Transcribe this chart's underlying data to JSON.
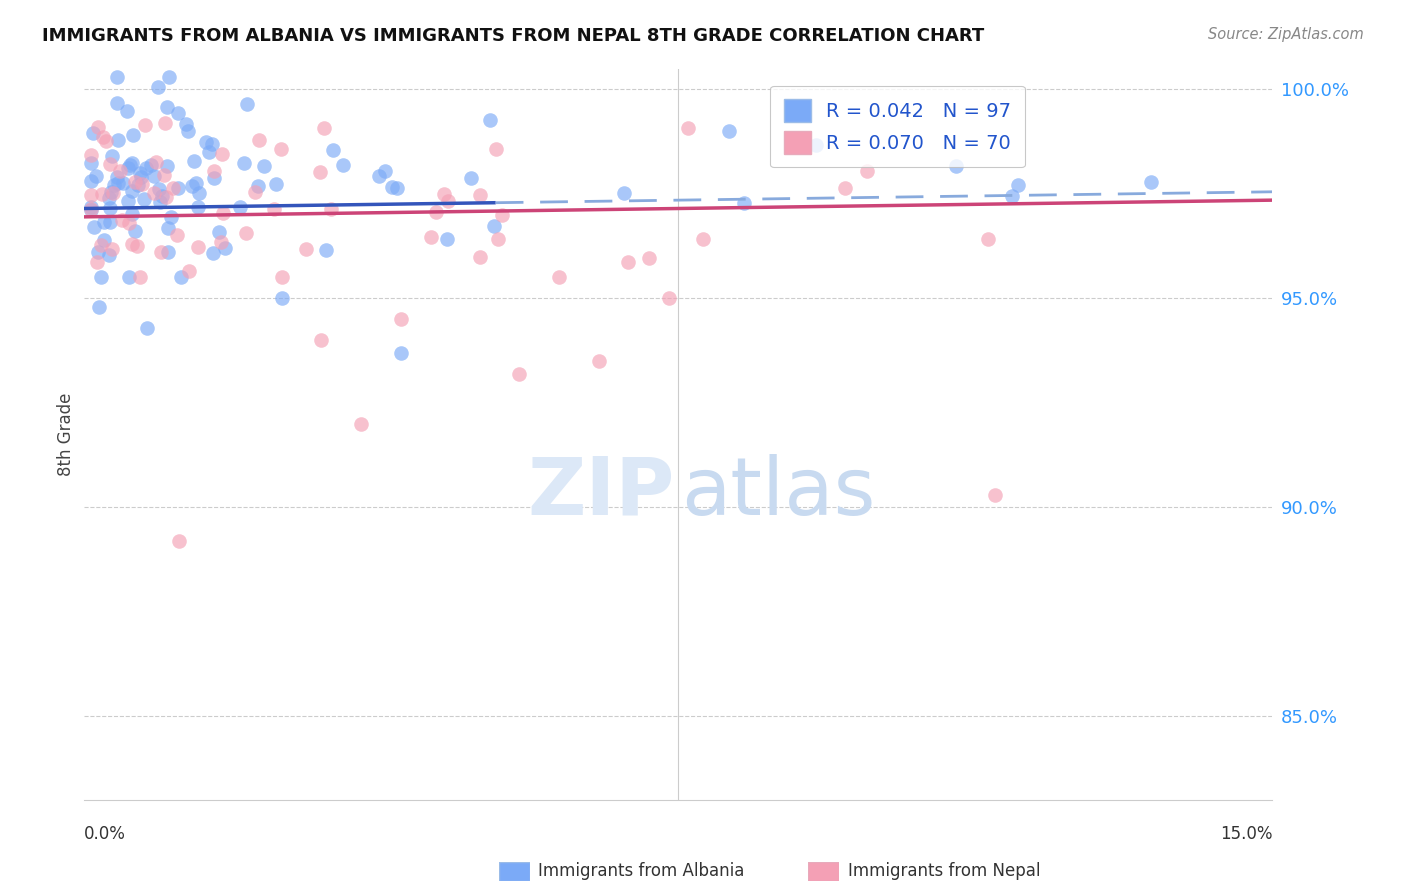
{
  "title": "IMMIGRANTS FROM ALBANIA VS IMMIGRANTS FROM NEPAL 8TH GRADE CORRELATION CHART",
  "source": "Source: ZipAtlas.com",
  "ylabel": "8th Grade",
  "xlim": [
    0.0,
    0.15
  ],
  "ylim": [
    0.83,
    1.005
  ],
  "yticks": [
    0.85,
    0.9,
    0.95,
    1.0
  ],
  "ytick_labels": [
    "85.0%",
    "90.0%",
    "95.0%",
    "100.0%"
  ],
  "albania_R": 0.042,
  "albania_N": 97,
  "nepal_R": 0.07,
  "nepal_N": 70,
  "albania_color": "#7baaf7",
  "nepal_color": "#f4a0b5",
  "albania_line_color": "#3355bb",
  "albania_dash_color": "#88aadd",
  "nepal_line_color": "#cc4477",
  "legend_label_albania": "Immigrants from Albania",
  "legend_label_nepal": "Immigrants from Nepal",
  "watermark_zip_color": "#dce8f7",
  "watermark_atlas_color": "#c8daf0",
  "grid_color": "#cccccc",
  "spine_color": "#cccccc"
}
